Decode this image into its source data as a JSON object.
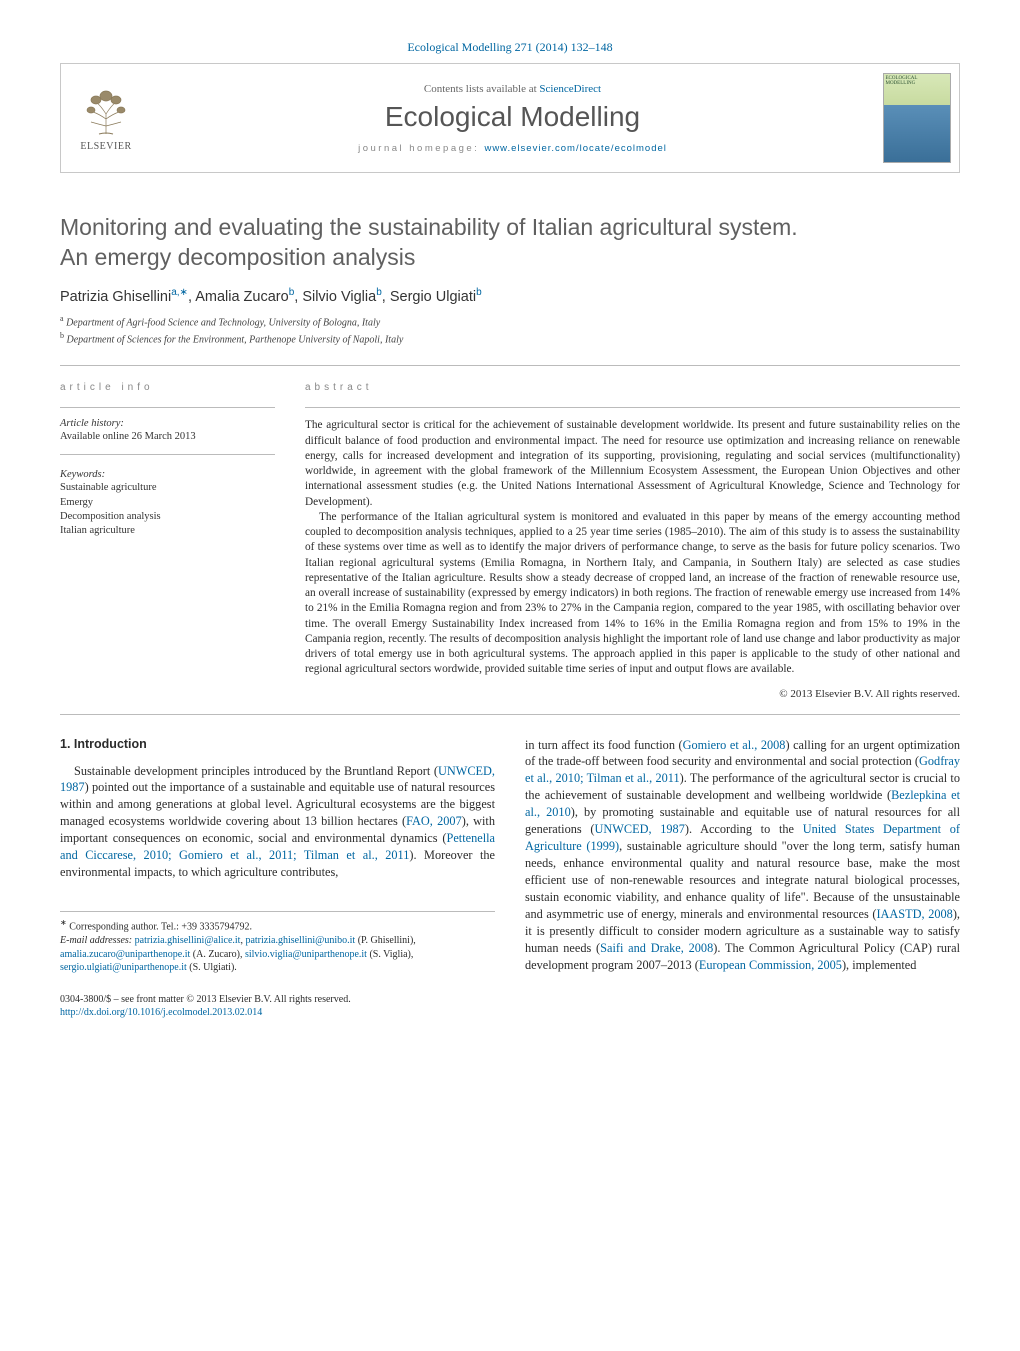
{
  "journal_ref": "Ecological Modelling 271 (2014) 132–148",
  "header": {
    "contents_prefix": "Contents lists available at ",
    "contents_link": "ScienceDirect",
    "journal_title": "Ecological Modelling",
    "homepage_prefix": "journal homepage: ",
    "homepage_link": "www.elsevier.com/locate/ecolmodel",
    "publisher_name": "ELSEVIER",
    "cover_label": "ECOLOGICAL MODELLING"
  },
  "title_line1": "Monitoring and evaluating the sustainability of Italian agricultural system.",
  "title_line2": "An emergy decomposition analysis",
  "authors": [
    {
      "name": "Patrizia Ghisellini",
      "aff": "a,",
      "star": "∗"
    },
    {
      "name": "Amalia Zucaro",
      "aff": "b"
    },
    {
      "name": "Silvio Viglia",
      "aff": "b"
    },
    {
      "name": "Sergio Ulgiati",
      "aff": "b"
    }
  ],
  "affiliations": [
    {
      "sup": "a",
      "text": "Department of Agri-food Science and Technology, University of Bologna, Italy"
    },
    {
      "sup": "b",
      "text": "Department of Sciences for the Environment, Parthenope University of Napoli, Italy"
    }
  ],
  "info": {
    "section_label": "article info",
    "history_head": "Article history:",
    "history_body": "Available online 26 March 2013",
    "keywords_head": "Keywords:",
    "keywords": [
      "Sustainable agriculture",
      "Emergy",
      "Decomposition analysis",
      "Italian agriculture"
    ]
  },
  "abstract": {
    "section_label": "abstract",
    "p1": "The agricultural sector is critical for the achievement of sustainable development worldwide. Its present and future sustainability relies on the difficult balance of food production and environmental impact. The need for resource use optimization and increasing reliance on renewable energy, calls for increased development and integration of its supporting, provisioning, regulating and social services (multifunctionality) worldwide, in agreement with the global framework of the Millennium Ecosystem Assessment, the European Union Objectives and other international assessment studies (e.g. the United Nations International Assessment of Agricultural Knowledge, Science and Technology for Development).",
    "p2": "The performance of the Italian agricultural system is monitored and evaluated in this paper by means of the emergy accounting method coupled to decomposition analysis techniques, applied to a 25 year time series (1985–2010). The aim of this study is to assess the sustainability of these systems over time as well as to identify the major drivers of performance change, to serve as the basis for future policy scenarios. Two Italian regional agricultural systems (Emilia Romagna, in Northern Italy, and Campania, in Southern Italy) are selected as case studies representative of the Italian agriculture. Results show a steady decrease of cropped land, an increase of the fraction of renewable resource use, an overall increase of sustainability (expressed by emergy indicators) in both regions. The fraction of renewable emergy use increased from 14% to 21% in the Emilia Romagna region and from 23% to 27% in the Campania region, compared to the year 1985, with oscillating behavior over time. The overall Emergy Sustainability Index increased from 14% to 16% in the Emilia Romagna region and from 15% to 19% in the Campania region, recently. The results of decomposition analysis highlight the important role of land use change and labor productivity as major drivers of total emergy use in both agricultural systems. The approach applied in this paper is applicable to the study of other national and regional agricultural sectors wordwide, provided suitable time series of input and output flows are available.",
    "copyright": "© 2013 Elsevier B.V. All rights reserved."
  },
  "body": {
    "heading": "1. Introduction",
    "col1": "Sustainable development principles introduced by the Bruntland Report (UNWCED, 1987) pointed out the importance of a sustainable and equitable use of natural resources within and among generations at global level. Agricultural ecosystems are the biggest managed ecosystems worldwide covering about 13 billion hectares (FAO, 2007), with important consequences on economic, social and environmental dynamics (Pettenella and Ciccarese, 2010; Gomiero et al., 2011; Tilman et al., 2011). Moreover the environmental impacts, to which agriculture contributes,",
    "col1_cites": [
      "UNWCED, 1987",
      "FAO, 2007",
      "Pettenella and Ciccarese, 2010; Gomiero et al., 2011; Tilman et al., 2011"
    ],
    "col2": "in turn affect its food function (Gomiero et al., 2008) calling for an urgent optimization of the trade-off between food security and environmental and social protection (Godfray et al., 2010; Tilman et al., 2011). The performance of the agricultural sector is crucial to the achievement of sustainable development and wellbeing worldwide (Bezlepkina et al., 2010), by promoting sustainable and equitable use of natural resources for all generations (UNWCED, 1987). According to the United States Department of Agriculture (1999), sustainable agriculture should \"over the long term, satisfy human needs, enhance environmental quality and natural resource base, make the most efficient use of non-renewable resources and integrate natural biological processes, sustain economic viability, and enhance quality of life\". Because of the unsustainable and asymmetric use of energy, minerals and environmental resources (IAASTD, 2008), it is presently difficult to consider modern agriculture as a sustainable way to satisfy human needs (Saifi and Drake, 2008). The Common Agricultural Policy (CAP) rural development program 2007–2013 (European Commission, 2005), implemented",
    "col2_cites": [
      "Gomiero et al., 2008",
      "Godfray et al., 2010; Tilman et al., 2011",
      "Bezlepkina et al., 2010",
      "UNWCED, 1987",
      "United States Department of Agriculture (1999)",
      "IAASTD, 2008",
      "Saifi and Drake, 2008",
      "European Commission, 2005"
    ]
  },
  "footnotes": {
    "corr": "Corresponding author. Tel.: +39 3335794792.",
    "email_label": "E-mail addresses:",
    "emails": [
      {
        "addr": "patrizia.ghisellini@alice.it",
        "who": ""
      },
      {
        "addr": "patrizia.ghisellini@unibo.it",
        "who": "(P. Ghisellini),"
      },
      {
        "addr": "amalia.zucaro@uniparthenope.it",
        "who": "(A. Zucaro),"
      },
      {
        "addr": "silvio.viglia@uniparthenope.it",
        "who": "(S. Viglia),"
      },
      {
        "addr": "sergio.ulgiati@uniparthenope.it",
        "who": "(S. Ulgiati)."
      }
    ]
  },
  "bottom": {
    "line1": "0304-3800/$ – see front matter © 2013 Elsevier B.V. All rights reserved.",
    "doi": "http://dx.doi.org/10.1016/j.ecolmodel.2013.02.014"
  },
  "colors": {
    "link": "#0066a1",
    "text": "#2b2b2b",
    "muted": "#888",
    "rule": "#bbb"
  }
}
